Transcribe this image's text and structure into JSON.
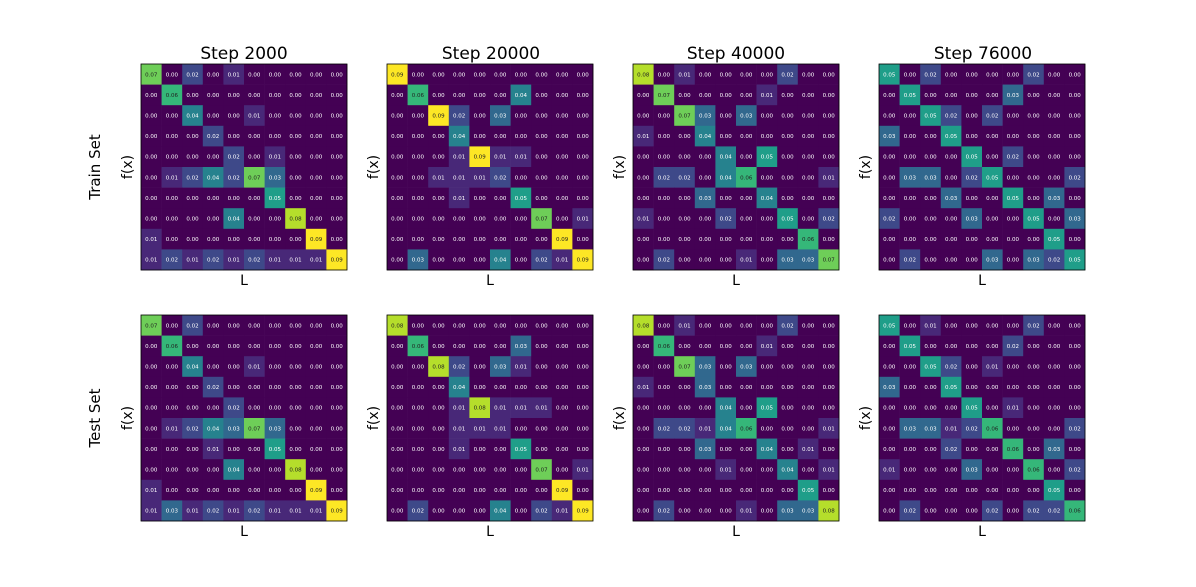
{
  "columns": [
    "Step 2000",
    "Step 20000",
    "Step 40000",
    "Step 76000"
  ],
  "rows": [
    "Train Set",
    "Test Set"
  ],
  "xlabel": "L",
  "ylabel": "f(x)",
  "colormap": [
    "#440154",
    "#482878",
    "#3e4989",
    "#31688e",
    "#26828e",
    "#1f9e89",
    "#35b779",
    "#6ece58",
    "#b5de2b",
    "#fde725"
  ],
  "chart_data": [
    {
      "type": "heatmap",
      "title": "Step 2000",
      "row_label": "Train Set",
      "xlabel": "L",
      "ylabel": "f(x)",
      "vmin": 0,
      "vmax": 0.09,
      "values": [
        [
          "0.07",
          "0.00",
          "0.02",
          "0.00",
          "0.01",
          "0.00",
          "0.00",
          "0.00",
          "0.00",
          "0.00"
        ],
        [
          "0.00",
          "0.06",
          "0.00",
          "0.00",
          "0.00",
          "0.00",
          "0.00",
          "0.00",
          "0.00",
          "0.00"
        ],
        [
          "0.00",
          "0.00",
          "0.04",
          "0.00",
          "0.00",
          "0.01",
          "0.00",
          "0.00",
          "0.00",
          "0.00"
        ],
        [
          "0.00",
          "0.00",
          "0.00",
          "0.02",
          "0.00",
          "0.00",
          "0.00",
          "0.00",
          "0.00",
          "0.00"
        ],
        [
          "0.00",
          "0.00",
          "0.00",
          "0.00",
          "0.02",
          "0.00",
          "0.01",
          "0.00",
          "0.00",
          "0.00"
        ],
        [
          "0.00",
          "0.01",
          "0.02",
          "0.04",
          "0.02",
          "0.07",
          "0.03",
          "0.00",
          "0.00",
          "0.00"
        ],
        [
          "0.00",
          "0.00",
          "0.00",
          "0.00",
          "0.00",
          "0.00",
          "0.05",
          "0.00",
          "0.00",
          "0.00"
        ],
        [
          "0.00",
          "0.00",
          "0.00",
          "0.00",
          "0.04",
          "0.00",
          "0.00",
          "0.08",
          "0.00",
          "0.00"
        ],
        [
          "0.01",
          "0.00",
          "0.00",
          "0.00",
          "0.00",
          "0.00",
          "0.00",
          "0.00",
          "0.09",
          "0.00"
        ],
        [
          "0.01",
          "0.02",
          "0.01",
          "0.02",
          "0.01",
          "0.02",
          "0.01",
          "0.01",
          "0.01",
          "0.09"
        ]
      ]
    },
    {
      "type": "heatmap",
      "title": "Step 20000",
      "row_label": "Train Set",
      "xlabel": "L",
      "ylabel": "f(x)",
      "vmin": 0,
      "vmax": 0.09,
      "values": [
        [
          "0.09",
          "0.00",
          "0.00",
          "0.00",
          "0.00",
          "0.00",
          "0.00",
          "0.00",
          "0.00",
          "0.00"
        ],
        [
          "0.00",
          "0.06",
          "0.00",
          "0.00",
          "0.00",
          "0.00",
          "0.04",
          "0.00",
          "0.00",
          "0.00"
        ],
        [
          "0.00",
          "0.00",
          "0.09",
          "0.02",
          "0.00",
          "0.03",
          "0.00",
          "0.00",
          "0.00",
          "0.00"
        ],
        [
          "0.00",
          "0.00",
          "0.00",
          "0.04",
          "0.00",
          "0.00",
          "0.00",
          "0.00",
          "0.00",
          "0.00"
        ],
        [
          "0.00",
          "0.00",
          "0.00",
          "0.01",
          "0.09",
          "0.01",
          "0.01",
          "0.00",
          "0.00",
          "0.00"
        ],
        [
          "0.00",
          "0.00",
          "0.01",
          "0.01",
          "0.01",
          "0.02",
          "0.00",
          "0.00",
          "0.00",
          "0.00"
        ],
        [
          "0.00",
          "0.00",
          "0.00",
          "0.01",
          "0.00",
          "0.00",
          "0.05",
          "0.00",
          "0.00",
          "0.00"
        ],
        [
          "0.00",
          "0.00",
          "0.00",
          "0.00",
          "0.00",
          "0.00",
          "0.00",
          "0.07",
          "0.00",
          "0.01"
        ],
        [
          "0.00",
          "0.00",
          "0.00",
          "0.00",
          "0.00",
          "0.00",
          "0.00",
          "0.00",
          "0.09",
          "0.00"
        ],
        [
          "0.00",
          "0.03",
          "0.00",
          "0.00",
          "0.00",
          "0.04",
          "0.00",
          "0.02",
          "0.01",
          "0.09"
        ]
      ]
    },
    {
      "type": "heatmap",
      "title": "Step 40000",
      "row_label": "Train Set",
      "xlabel": "L",
      "ylabel": "f(x)",
      "vmin": 0,
      "vmax": 0.09,
      "values": [
        [
          "0.08",
          "0.00",
          "0.01",
          "0.00",
          "0.00",
          "0.00",
          "0.00",
          "0.02",
          "0.00",
          "0.00"
        ],
        [
          "0.00",
          "0.07",
          "0.00",
          "0.00",
          "0.00",
          "0.00",
          "0.01",
          "0.00",
          "0.00",
          "0.00"
        ],
        [
          "0.00",
          "0.00",
          "0.07",
          "0.03",
          "0.00",
          "0.03",
          "0.00",
          "0.00",
          "0.00",
          "0.00"
        ],
        [
          "0.01",
          "0.00",
          "0.00",
          "0.04",
          "0.00",
          "0.00",
          "0.00",
          "0.00",
          "0.00",
          "0.00"
        ],
        [
          "0.00",
          "0.00",
          "0.00",
          "0.00",
          "0.04",
          "0.00",
          "0.05",
          "0.00",
          "0.00",
          "0.00"
        ],
        [
          "0.00",
          "0.02",
          "0.02",
          "0.00",
          "0.04",
          "0.06",
          "0.00",
          "0.00",
          "0.00",
          "0.01"
        ],
        [
          "0.00",
          "0.00",
          "0.00",
          "0.03",
          "0.00",
          "0.00",
          "0.04",
          "0.00",
          "0.00",
          "0.00"
        ],
        [
          "0.01",
          "0.00",
          "0.00",
          "0.00",
          "0.02",
          "0.00",
          "0.00",
          "0.05",
          "0.00",
          "0.02"
        ],
        [
          "0.00",
          "0.00",
          "0.00",
          "0.00",
          "0.00",
          "0.00",
          "0.00",
          "0.00",
          "0.06",
          "0.00"
        ],
        [
          "0.00",
          "0.02",
          "0.00",
          "0.00",
          "0.00",
          "0.01",
          "0.00",
          "0.03",
          "0.03",
          "0.07"
        ]
      ]
    },
    {
      "type": "heatmap",
      "title": "Step 76000",
      "row_label": "Train Set",
      "xlabel": "L",
      "ylabel": "f(x)",
      "vmin": 0,
      "vmax": 0.09,
      "values": [
        [
          "0.05",
          "0.00",
          "0.02",
          "0.00",
          "0.00",
          "0.00",
          "0.00",
          "0.02",
          "0.00",
          "0.00"
        ],
        [
          "0.00",
          "0.05",
          "0.00",
          "0.00",
          "0.00",
          "0.00",
          "0.03",
          "0.00",
          "0.00",
          "0.00"
        ],
        [
          "0.00",
          "0.00",
          "0.05",
          "0.02",
          "0.00",
          "0.02",
          "0.00",
          "0.00",
          "0.00",
          "0.00"
        ],
        [
          "0.03",
          "0.00",
          "0.00",
          "0.05",
          "0.00",
          "0.00",
          "0.00",
          "0.00",
          "0.00",
          "0.00"
        ],
        [
          "0.00",
          "0.00",
          "0.00",
          "0.00",
          "0.05",
          "0.00",
          "0.02",
          "0.00",
          "0.00",
          "0.00"
        ],
        [
          "0.00",
          "0.03",
          "0.03",
          "0.00",
          "0.02",
          "0.05",
          "0.00",
          "0.00",
          "0.00",
          "0.02"
        ],
        [
          "0.00",
          "0.00",
          "0.00",
          "0.03",
          "0.00",
          "0.00",
          "0.05",
          "0.00",
          "0.03",
          "0.00"
        ],
        [
          "0.02",
          "0.00",
          "0.00",
          "0.00",
          "0.03",
          "0.00",
          "0.00",
          "0.05",
          "0.00",
          "0.03"
        ],
        [
          "0.00",
          "0.00",
          "0.00",
          "0.00",
          "0.00",
          "0.00",
          "0.00",
          "0.00",
          "0.05",
          "0.00"
        ],
        [
          "0.00",
          "0.02",
          "0.00",
          "0.00",
          "0.00",
          "0.03",
          "0.00",
          "0.03",
          "0.02",
          "0.05"
        ]
      ]
    },
    {
      "type": "heatmap",
      "title": "Step 2000",
      "row_label": "Test Set",
      "xlabel": "L",
      "ylabel": "f(x)",
      "vmin": 0,
      "vmax": 0.09,
      "values": [
        [
          "0.07",
          "0.00",
          "0.02",
          "0.00",
          "0.00",
          "0.00",
          "0.00",
          "0.00",
          "0.00",
          "0.00"
        ],
        [
          "0.00",
          "0.06",
          "0.00",
          "0.00",
          "0.00",
          "0.00",
          "0.00",
          "0.00",
          "0.00",
          "0.00"
        ],
        [
          "0.00",
          "0.00",
          "0.04",
          "0.00",
          "0.00",
          "0.01",
          "0.00",
          "0.00",
          "0.00",
          "0.00"
        ],
        [
          "0.00",
          "0.00",
          "0.00",
          "0.02",
          "0.00",
          "0.00",
          "0.00",
          "0.00",
          "0.00",
          "0.00"
        ],
        [
          "0.00",
          "0.00",
          "0.00",
          "0.00",
          "0.02",
          "0.00",
          "0.00",
          "0.00",
          "0.00",
          "0.00"
        ],
        [
          "0.00",
          "0.01",
          "0.02",
          "0.04",
          "0.03",
          "0.07",
          "0.03",
          "0.00",
          "0.00",
          "0.00"
        ],
        [
          "0.00",
          "0.00",
          "0.00",
          "0.01",
          "0.00",
          "0.00",
          "0.05",
          "0.00",
          "0.00",
          "0.00"
        ],
        [
          "0.00",
          "0.00",
          "0.00",
          "0.00",
          "0.04",
          "0.00",
          "0.00",
          "0.08",
          "0.00",
          "0.00"
        ],
        [
          "0.01",
          "0.00",
          "0.00",
          "0.00",
          "0.00",
          "0.00",
          "0.00",
          "0.00",
          "0.09",
          "0.00"
        ],
        [
          "0.01",
          "0.03",
          "0.01",
          "0.02",
          "0.01",
          "0.02",
          "0.01",
          "0.01",
          "0.01",
          "0.09"
        ]
      ]
    },
    {
      "type": "heatmap",
      "title": "Step 20000",
      "row_label": "Test Set",
      "xlabel": "L",
      "ylabel": "f(x)",
      "vmin": 0,
      "vmax": 0.09,
      "values": [
        [
          "0.08",
          "0.00",
          "0.00",
          "0.00",
          "0.00",
          "0.00",
          "0.00",
          "0.00",
          "0.00",
          "0.00"
        ],
        [
          "0.00",
          "0.06",
          "0.00",
          "0.00",
          "0.00",
          "0.00",
          "0.03",
          "0.00",
          "0.00",
          "0.00"
        ],
        [
          "0.00",
          "0.00",
          "0.08",
          "0.02",
          "0.00",
          "0.03",
          "0.01",
          "0.00",
          "0.00",
          "0.00"
        ],
        [
          "0.00",
          "0.00",
          "0.00",
          "0.04",
          "0.00",
          "0.00",
          "0.00",
          "0.00",
          "0.00",
          "0.00"
        ],
        [
          "0.00",
          "0.00",
          "0.00",
          "0.01",
          "0.08",
          "0.01",
          "0.01",
          "0.01",
          "0.00",
          "0.00"
        ],
        [
          "0.00",
          "0.00",
          "0.00",
          "0.01",
          "0.01",
          "0.01",
          "0.00",
          "0.00",
          "0.00",
          "0.00"
        ],
        [
          "0.00",
          "0.00",
          "0.00",
          "0.01",
          "0.00",
          "0.00",
          "0.05",
          "0.00",
          "0.00",
          "0.00"
        ],
        [
          "0.00",
          "0.00",
          "0.00",
          "0.00",
          "0.00",
          "0.00",
          "0.00",
          "0.07",
          "0.00",
          "0.01"
        ],
        [
          "0.00",
          "0.00",
          "0.00",
          "0.00",
          "0.00",
          "0.00",
          "0.00",
          "0.00",
          "0.09",
          "0.00"
        ],
        [
          "0.00",
          "0.02",
          "0.00",
          "0.00",
          "0.00",
          "0.04",
          "0.00",
          "0.02",
          "0.01",
          "0.09"
        ]
      ]
    },
    {
      "type": "heatmap",
      "title": "Step 40000",
      "row_label": "Test Set",
      "xlabel": "L",
      "ylabel": "f(x)",
      "vmin": 0,
      "vmax": 0.09,
      "values": [
        [
          "0.08",
          "0.00",
          "0.01",
          "0.00",
          "0.00",
          "0.00",
          "0.00",
          "0.02",
          "0.00",
          "0.00"
        ],
        [
          "0.00",
          "0.06",
          "0.00",
          "0.00",
          "0.00",
          "0.00",
          "0.01",
          "0.00",
          "0.00",
          "0.00"
        ],
        [
          "0.00",
          "0.00",
          "0.07",
          "0.03",
          "0.00",
          "0.03",
          "0.00",
          "0.00",
          "0.00",
          "0.00"
        ],
        [
          "0.01",
          "0.00",
          "0.00",
          "0.03",
          "0.00",
          "0.00",
          "0.00",
          "0.00",
          "0.00",
          "0.00"
        ],
        [
          "0.00",
          "0.00",
          "0.00",
          "0.00",
          "0.04",
          "0.00",
          "0.05",
          "0.00",
          "0.00",
          "0.00"
        ],
        [
          "0.00",
          "0.02",
          "0.02",
          "0.01",
          "0.04",
          "0.06",
          "0.00",
          "0.00",
          "0.00",
          "0.01"
        ],
        [
          "0.00",
          "0.00",
          "0.00",
          "0.03",
          "0.00",
          "0.00",
          "0.04",
          "0.00",
          "0.01",
          "0.00"
        ],
        [
          "0.00",
          "0.00",
          "0.00",
          "0.00",
          "0.01",
          "0.00",
          "0.00",
          "0.04",
          "0.00",
          "0.01"
        ],
        [
          "0.00",
          "0.00",
          "0.00",
          "0.00",
          "0.00",
          "0.00",
          "0.00",
          "0.00",
          "0.05",
          "0.00"
        ],
        [
          "0.00",
          "0.02",
          "0.00",
          "0.00",
          "0.00",
          "0.01",
          "0.00",
          "0.03",
          "0.03",
          "0.08"
        ]
      ]
    },
    {
      "type": "heatmap",
      "title": "Step 76000",
      "row_label": "Test Set",
      "xlabel": "L",
      "ylabel": "f(x)",
      "vmin": 0,
      "vmax": 0.09,
      "values": [
        [
          "0.05",
          "0.00",
          "0.01",
          "0.00",
          "0.00",
          "0.00",
          "0.00",
          "0.02",
          "0.00",
          "0.00"
        ],
        [
          "0.00",
          "0.05",
          "0.00",
          "0.00",
          "0.00",
          "0.00",
          "0.02",
          "0.00",
          "0.00",
          "0.00"
        ],
        [
          "0.00",
          "0.00",
          "0.05",
          "0.02",
          "0.00",
          "0.01",
          "0.00",
          "0.00",
          "0.00",
          "0.00"
        ],
        [
          "0.03",
          "0.00",
          "0.00",
          "0.05",
          "0.00",
          "0.00",
          "0.00",
          "0.00",
          "0.00",
          "0.00"
        ],
        [
          "0.00",
          "0.00",
          "0.00",
          "0.00",
          "0.05",
          "0.00",
          "0.01",
          "0.00",
          "0.00",
          "0.00"
        ],
        [
          "0.00",
          "0.03",
          "0.03",
          "0.01",
          "0.02",
          "0.06",
          "0.00",
          "0.00",
          "0.00",
          "0.02"
        ],
        [
          "0.00",
          "0.00",
          "0.00",
          "0.02",
          "0.00",
          "0.00",
          "0.06",
          "0.00",
          "0.03",
          "0.00"
        ],
        [
          "0.01",
          "0.00",
          "0.00",
          "0.00",
          "0.03",
          "0.00",
          "0.00",
          "0.06",
          "0.00",
          "0.02"
        ],
        [
          "0.00",
          "0.00",
          "0.00",
          "0.00",
          "0.00",
          "0.00",
          "0.00",
          "0.00",
          "0.05",
          "0.00"
        ],
        [
          "0.00",
          "0.02",
          "0.00",
          "0.00",
          "0.00",
          "0.02",
          "0.00",
          "0.02",
          "0.02",
          "0.06"
        ]
      ]
    }
  ]
}
